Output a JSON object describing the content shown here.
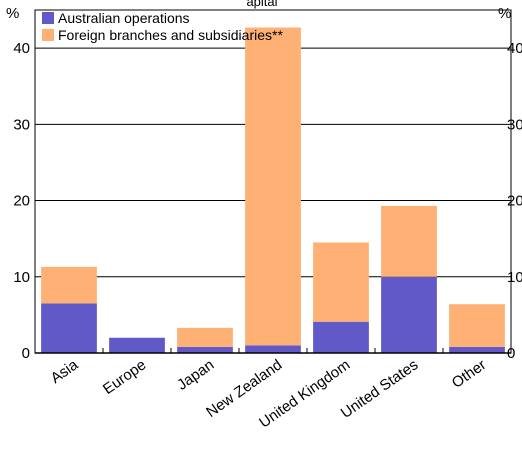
{
  "chart_data": {
    "type": "bar",
    "stacked": true,
    "title": "",
    "title_fragment": "apital",
    "xlabel": "",
    "ylabel": "",
    "y_unit_left": "%",
    "y_unit_right": "%",
    "ylim": [
      0,
      45
    ],
    "yticks": [
      0,
      10,
      20,
      30,
      40
    ],
    "grid": true,
    "legend_position": "top-left",
    "categories": [
      "Asia",
      "Europe",
      "Japan",
      "New Zealand",
      "United Kingdom",
      "United States",
      "Other"
    ],
    "series": [
      {
        "name": "Australian operations",
        "color": "#6159c7",
        "values": [
          6.5,
          2.0,
          0.8,
          1.0,
          4.1,
          10.0,
          0.8
        ]
      },
      {
        "name": "Foreign branches and subsidiaries**",
        "color": "#ffb074",
        "values": [
          4.8,
          0.0,
          2.5,
          41.7,
          10.4,
          9.3,
          5.6
        ]
      }
    ]
  }
}
